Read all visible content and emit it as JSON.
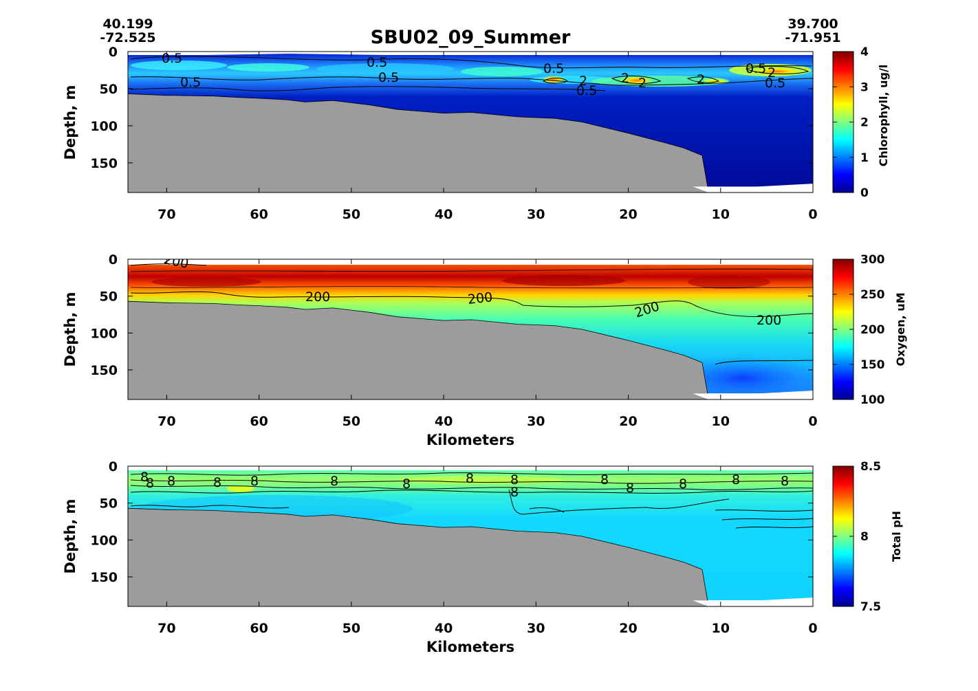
{
  "figure": {
    "title": "SBU02_09_Summer",
    "start": {
      "lat": "40.199",
      "lon": "-72.525"
    },
    "end": {
      "lat": "39.700",
      "lon": "-71.951"
    }
  },
  "chart_data": [
    {
      "type": "heatmap",
      "panel": "chlorophyll",
      "xlabel": "",
      "ylabel": "Depth, m",
      "x_ticks": [
        "70",
        "60",
        "50",
        "40",
        "30",
        "20",
        "10",
        "0"
      ],
      "x_tick_values": [
        70,
        60,
        50,
        40,
        30,
        20,
        10,
        0
      ],
      "y_ticks": [
        "0",
        "50",
        "100",
        "150"
      ],
      "y_tick_values": [
        0,
        50,
        100,
        150
      ],
      "xlim": [
        74.2,
        0
      ],
      "ylim": [
        0,
        190
      ],
      "y_reversed": true,
      "colorbar": {
        "label": "Chlorophyll, ug/l",
        "ticks": [
          "0",
          "1",
          "2",
          "3",
          "4"
        ],
        "range": [
          0,
          4
        ],
        "colormap": "jet"
      },
      "contour_labels": [
        "0.5",
        "0.5",
        "0.5",
        "0.5",
        "0.5",
        "2",
        "2",
        "2",
        "2",
        "0.5",
        "0.5",
        "2",
        "0.5"
      ],
      "bottom_depth_profile": {
        "x": [
          74.2,
          70,
          65,
          62,
          60,
          57,
          55,
          52,
          48,
          45,
          40,
          37,
          32,
          28,
          25,
          20,
          16,
          14,
          12,
          11.3
        ],
        "depth": [
          57,
          59,
          60,
          62,
          63,
          65,
          68,
          66,
          72,
          78,
          83,
          82,
          88,
          90,
          95,
          110,
          123,
          130,
          140,
          190
        ]
      },
      "data_bottom": {
        "x": [
          13,
          6,
          0
        ],
        "depth": [
          182,
          182,
          178
        ]
      },
      "field_description": [
        {
          "x_range": [
            74.2,
            0
          ],
          "depth_range": [
            20,
            35
          ],
          "value_approx": 0.8
        },
        {
          "x": 28,
          "depth": 38,
          "value_approx": 3.5
        },
        {
          "x": 6,
          "depth": 30,
          "value_approx": 2.8
        }
      ]
    },
    {
      "type": "heatmap",
      "panel": "oxygen",
      "xlabel": "Kilometers",
      "ylabel": "Depth, m",
      "x_ticks": [
        "70",
        "60",
        "50",
        "40",
        "30",
        "20",
        "10",
        "0"
      ],
      "x_tick_values": [
        70,
        60,
        50,
        40,
        30,
        20,
        10,
        0
      ],
      "y_ticks": [
        "0",
        "50",
        "100",
        "150"
      ],
      "y_tick_values": [
        0,
        50,
        100,
        150
      ],
      "xlim": [
        74.2,
        0
      ],
      "ylim": [
        0,
        190
      ],
      "y_reversed": true,
      "colorbar": {
        "label": "Oxygen, uM",
        "ticks": [
          "100",
          "150",
          "200",
          "250",
          "300"
        ],
        "range": [
          100,
          300
        ],
        "colormap": "jet"
      },
      "contour_labels": [
        "200",
        "200",
        "200",
        "200",
        "200"
      ],
      "field_description": [
        {
          "x_range": [
            74.2,
            0
          ],
          "depth_range": [
            8,
            35
          ],
          "value_approx": 285
        },
        {
          "x_range": [
            74.2,
            0
          ],
          "depth_range": [
            40,
            60
          ],
          "value_approx": 215
        },
        {
          "x_range": [
            15,
            0
          ],
          "depth_range": [
            140,
            180
          ],
          "value_approx": 160
        }
      ]
    },
    {
      "type": "heatmap",
      "panel": "ph",
      "xlabel": "Kilometers",
      "ylabel": "Depth, m",
      "x_ticks": [
        "70",
        "60",
        "50",
        "40",
        "30",
        "20",
        "10",
        "0"
      ],
      "x_tick_values": [
        70,
        60,
        50,
        40,
        30,
        20,
        10,
        0
      ],
      "y_ticks": [
        "0",
        "50",
        "100",
        "150"
      ],
      "y_tick_values": [
        0,
        50,
        100,
        150
      ],
      "xlim": [
        74.2,
        0
      ],
      "ylim": [
        0,
        190
      ],
      "y_reversed": true,
      "colorbar": {
        "label": "Total pH",
        "ticks": [
          "7.5",
          "8",
          "8.5"
        ],
        "range": [
          7.5,
          8.5
        ],
        "colormap": "jet"
      },
      "contour_labels": [
        "8",
        "8",
        "8",
        "8",
        "8",
        "8",
        "8",
        "8",
        "8",
        "8",
        "8",
        "8",
        "8",
        "8",
        "8"
      ],
      "field_description": [
        {
          "x_range": [
            74.2,
            0
          ],
          "depth_range": [
            10,
            30
          ],
          "value_approx": 7.98
        },
        {
          "x_range": [
            74.2,
            0
          ],
          "depth_range": [
            40,
            180
          ],
          "value_approx": 7.82
        }
      ]
    }
  ],
  "colors": {
    "land": "#9c9c9c",
    "frame": "#000000",
    "contour": "#000000"
  }
}
